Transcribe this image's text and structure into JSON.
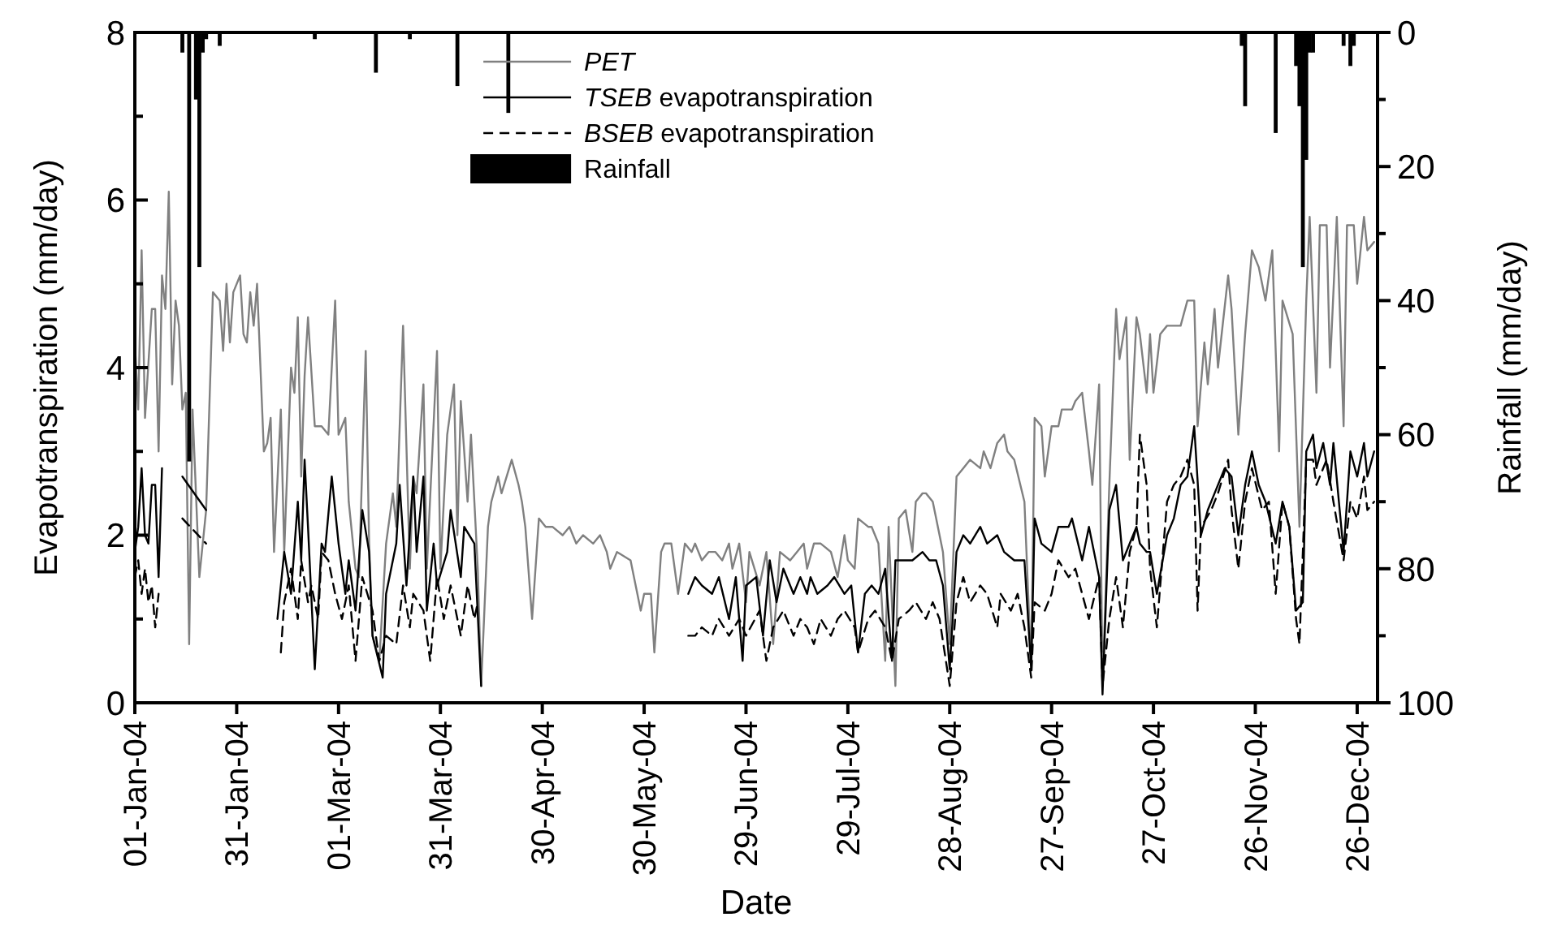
{
  "chart_data": {
    "type": "line",
    "xlabel": "Date",
    "ylabel": "Evapotranspiration (mm/day)",
    "y2label": "Rainfall (mm/day)",
    "xlim": [
      "2004-01-01",
      "2005-01-01"
    ],
    "xticks": [
      {
        "value": "2004-01-01",
        "label": "01-Jan-04"
      },
      {
        "value": "2004-01-31",
        "label": "31-Jan-04"
      },
      {
        "value": "2004-03-01",
        "label": "01-Mar-04"
      },
      {
        "value": "2004-03-31",
        "label": "31-Mar-04"
      },
      {
        "value": "2004-04-30",
        "label": "30-Apr-04"
      },
      {
        "value": "2004-05-30",
        "label": "30-May-04"
      },
      {
        "value": "2004-06-29",
        "label": "29-Jun-04"
      },
      {
        "value": "2004-07-29",
        "label": "29-Jul-04"
      },
      {
        "value": "2004-08-28",
        "label": "28-Aug-04"
      },
      {
        "value": "2004-09-27",
        "label": "27-Sep-04"
      },
      {
        "value": "2004-10-27",
        "label": "27-Oct-04"
      },
      {
        "value": "2004-11-26",
        "label": "26-Nov-04"
      },
      {
        "value": "2004-12-26",
        "label": "26-Dec-04"
      }
    ],
    "ylim": [
      0,
      8
    ],
    "yticks": [
      0,
      {
        "value": 1,
        "label": null
      },
      2,
      {
        "value": 3,
        "label": null
      },
      4,
      {
        "value": 5,
        "label": null
      },
      6,
      {
        "value": 7,
        "label": null
      },
      8
    ],
    "y2lim": [
      100,
      0
    ],
    "y2ticks": [
      100,
      {
        "value": 90,
        "label": null
      },
      80,
      {
        "value": 70,
        "label": null
      },
      60,
      {
        "value": 50,
        "label": null
      },
      40,
      {
        "value": 30,
        "label": null
      },
      20,
      {
        "value": 10,
        "label": null
      },
      0
    ],
    "legend": "top",
    "series": [
      {
        "name": "PET",
        "color": "#808080",
        "line_style": "solid",
        "x": [
          "2004-01-01",
          "2004-01-02",
          "2004-01-03",
          "2004-01-04",
          "2004-01-06",
          "2004-01-07",
          "2004-01-08",
          "2004-01-09",
          "2004-01-10",
          "2004-01-11",
          "2004-01-12",
          "2004-01-13",
          "2004-01-14",
          "2004-01-15",
          "2004-01-16",
          "2004-01-17",
          "2004-01-18",
          "2004-01-20",
          "2004-01-22",
          "2004-01-24",
          "2004-01-26",
          "2004-01-27",
          "2004-01-28",
          "2004-01-29",
          "2004-01-30",
          "2004-02-01",
          "2004-02-02",
          "2004-02-03",
          "2004-02-04",
          "2004-02-05",
          "2004-02-06",
          "2004-02-08",
          "2004-02-09",
          "2004-02-10",
          "2004-02-11",
          "2004-02-13",
          "2004-02-14",
          "2004-02-16",
          "2004-02-17",
          "2004-02-18",
          "2004-02-19",
          "2004-02-20",
          "2004-02-21",
          "2004-02-23",
          "2004-02-25",
          "2004-02-27",
          "2004-02-29",
          "2004-03-01",
          "2004-03-03",
          "2004-03-04",
          "2004-03-06",
          "2004-03-07",
          "2004-03-09",
          "2004-03-10",
          "2004-03-11",
          "2004-03-13",
          "2004-03-15",
          "2004-03-17",
          "2004-03-18",
          "2004-03-20",
          "2004-03-22",
          "2004-03-23",
          "2004-03-24",
          "2004-03-26",
          "2004-03-27",
          "2004-03-30",
          "2004-03-31",
          "2004-04-02",
          "2004-04-04",
          "2004-04-05",
          "2004-04-06",
          "2004-04-08",
          "2004-04-09",
          "2004-04-11",
          "2004-04-12",
          "2004-04-14",
          "2004-04-15",
          "2004-04-17",
          "2004-04-18",
          "2004-04-21",
          "2004-04-23",
          "2004-04-24",
          "2004-04-25",
          "2004-04-27",
          "2004-04-29",
          "2004-05-01",
          "2004-05-03",
          "2004-05-06",
          "2004-05-08",
          "2004-05-10",
          "2004-05-12",
          "2004-05-15",
          "2004-05-17",
          "2004-05-19",
          "2004-05-20",
          "2004-05-22",
          "2004-05-26",
          "2004-05-28",
          "2004-05-29",
          "2004-05-30",
          "2004-06-01",
          "2004-06-02",
          "2004-06-04",
          "2004-06-05",
          "2004-06-07",
          "2004-06-09",
          "2004-06-11",
          "2004-06-13",
          "2004-06-14",
          "2004-06-16",
          "2004-06-18",
          "2004-06-20",
          "2004-06-22",
          "2004-06-24",
          "2004-06-25",
          "2004-06-27",
          "2004-06-29",
          "2004-06-30",
          "2004-07-03",
          "2004-07-05",
          "2004-07-07",
          "2004-07-09",
          "2004-07-12",
          "2004-07-14",
          "2004-07-16",
          "2004-07-17",
          "2004-07-19",
          "2004-07-21",
          "2004-07-24",
          "2004-07-26",
          "2004-07-28",
          "2004-07-29",
          "2004-07-31",
          "2004-08-01",
          "2004-08-04",
          "2004-08-05",
          "2004-08-07",
          "2004-08-09",
          "2004-08-10",
          "2004-08-12",
          "2004-08-13",
          "2004-08-15",
          "2004-08-17",
          "2004-08-18",
          "2004-08-20",
          "2004-08-21",
          "2004-08-23",
          "2004-08-24",
          "2004-08-26",
          "2004-08-28",
          "2004-08-30",
          "2004-09-01",
          "2004-09-03",
          "2004-09-06",
          "2004-09-07",
          "2004-09-09",
          "2004-09-11",
          "2004-09-13",
          "2004-09-14",
          "2004-09-16",
          "2004-09-19",
          "2004-09-21",
          "2004-09-22",
          "2004-09-24",
          "2004-09-25",
          "2004-09-27",
          "2004-09-29",
          "2004-09-30",
          "2004-10-03",
          "2004-10-04",
          "2004-10-06",
          "2004-10-08",
          "2004-10-09",
          "2004-10-11",
          "2004-10-12",
          "2004-10-14",
          "2004-10-16",
          "2004-10-17",
          "2004-10-19",
          "2004-10-20",
          "2004-10-22",
          "2004-10-23",
          "2004-10-25",
          "2004-10-26",
          "2004-10-27",
          "2004-10-29",
          "2004-10-31",
          "2004-11-02",
          "2004-11-04",
          "2004-11-06",
          "2004-11-08",
          "2004-11-09",
          "2004-11-11",
          "2004-11-12",
          "2004-11-14",
          "2004-11-15",
          "2004-11-18",
          "2004-11-19",
          "2004-11-21",
          "2004-11-23",
          "2004-11-25",
          "2004-11-27",
          "2004-11-29",
          "2004-12-01",
          "2004-12-03",
          "2004-12-04",
          "2004-12-07",
          "2004-12-09",
          "2004-12-11",
          "2004-12-12",
          "2004-12-14",
          "2004-12-15",
          "2004-12-17",
          "2004-12-18",
          "2004-12-20",
          "2004-12-22",
          "2004-12-23",
          "2004-12-25",
          "2004-12-26",
          "2004-12-28",
          "2004-12-29",
          "2004-12-31"
        ],
        "values": [
          4.3,
          3.5,
          5.4,
          3.4,
          4.7,
          4.7,
          3.0,
          5.1,
          4.7,
          6.1,
          3.8,
          4.8,
          4.5,
          3.5,
          3.7,
          0.7,
          3.5,
          1.5,
          2.3,
          4.9,
          4.8,
          4.2,
          5.0,
          4.3,
          4.9,
          5.1,
          4.4,
          4.3,
          4.9,
          4.5,
          5.0,
          3.0,
          3.1,
          3.4,
          1.8,
          3.5,
          1.8,
          4.0,
          3.7,
          4.6,
          2.7,
          3.9,
          4.6,
          3.3,
          3.3,
          3.2,
          4.8,
          3.2,
          3.4,
          2.4,
          1.6,
          1.5,
          4.2,
          1.9,
          0.8,
          0.5,
          1.9,
          2.5,
          2.1,
          4.5,
          1.6,
          2.7,
          2.5,
          3.8,
          1.6,
          4.2,
          1.6,
          3.2,
          3.8,
          2.0,
          3.6,
          2.4,
          3.2,
          1.6,
          0.2,
          2.1,
          2.4,
          2.7,
          2.5,
          2.9,
          2.6,
          2.4,
          2.1,
          1.0,
          2.2,
          2.1,
          2.1,
          2.0,
          2.1,
          1.9,
          2.0,
          1.9,
          2.0,
          1.8,
          1.6,
          1.8,
          1.7,
          1.3,
          1.1,
          1.3,
          1.3,
          0.6,
          1.8,
          1.9,
          1.9,
          1.3,
          1.9,
          1.8,
          1.9,
          1.7,
          1.8,
          1.8,
          1.7,
          1.9,
          1.6,
          1.9,
          1.2,
          1.8,
          1.4,
          1.8,
          0.7,
          1.8,
          1.7,
          1.8,
          1.9,
          1.6,
          1.9,
          1.9,
          1.8,
          1.5,
          2.0,
          1.7,
          1.6,
          2.2,
          2.1,
          2.1,
          1.9,
          0.5,
          2.1,
          0.2,
          2.2,
          2.3,
          1.8,
          2.4,
          2.5,
          2.5,
          2.4,
          2.2,
          1.8,
          0.7,
          2.7,
          2.8,
          2.9,
          2.8,
          3.0,
          2.8,
          3.1,
          3.2,
          3.0,
          2.9,
          2.4,
          0.4,
          3.4,
          3.3,
          2.7,
          3.3,
          3.3,
          3.5,
          3.5,
          3.6,
          3.7,
          3.0,
          2.6,
          3.8,
          0.2,
          2.6,
          4.7,
          4.1,
          4.6,
          2.9,
          4.6,
          4.4,
          3.7,
          4.4,
          3.7,
          4.4,
          4.5,
          4.5,
          4.5,
          4.8,
          4.8,
          3.3,
          4.3,
          3.8,
          4.7,
          4.0,
          5.1,
          4.7,
          3.2,
          4.4,
          5.4,
          5.2,
          4.8,
          5.4,
          3.0,
          4.8,
          4.4,
          2.1,
          4.8,
          5.8,
          3.7,
          5.7,
          5.7,
          4.0,
          5.8,
          3.3,
          5.7,
          5.7,
          5.0,
          5.8,
          5.4,
          5.5
        ]
      },
      {
        "name": "TSEB evapotranspiration",
        "color": "#000000",
        "line_style": "solid",
        "x": [
          "2004-01-01",
          "2004-01-02",
          "2004-01-03",
          "2004-01-04",
          "2004-01-05",
          "2004-01-06",
          "2004-01-07",
          "2004-01-08",
          "2004-01-09",
          "2004-01-12",
          "2004-01-15",
          "2004-01-22",
          "2004-02-01",
          "2004-02-12",
          "2004-02-14",
          "2004-02-16",
          "2004-02-18",
          "2004-02-19",
          "2004-02-20",
          "2004-02-21",
          "2004-02-23",
          "2004-02-25",
          "2004-02-26",
          "2004-02-28",
          "2004-03-01",
          "2004-03-03",
          "2004-03-04",
          "2004-03-06",
          "2004-03-08",
          "2004-03-10",
          "2004-03-11",
          "2004-03-14",
          "2004-03-15",
          "2004-03-18",
          "2004-03-19",
          "2004-03-21",
          "2004-03-23",
          "2004-03-24",
          "2004-03-26",
          "2004-03-27",
          "2004-03-29",
          "2004-03-30",
          "2004-04-02",
          "2004-04-03",
          "2004-04-06",
          "2004-04-07",
          "2004-04-10",
          "2004-04-12",
          "2004-05-15",
          "2004-06-12",
          "2004-06-14",
          "2004-06-16",
          "2004-06-19",
          "2004-06-21",
          "2004-06-24",
          "2004-06-26",
          "2004-06-28",
          "2004-06-29",
          "2004-07-02",
          "2004-07-04",
          "2004-07-06",
          "2004-07-08",
          "2004-07-10",
          "2004-07-13",
          "2004-07-15",
          "2004-07-17",
          "2004-07-18",
          "2004-07-20",
          "2004-07-23",
          "2004-07-25",
          "2004-07-28",
          "2004-07-30",
          "2004-08-01",
          "2004-08-03",
          "2004-08-05",
          "2004-08-07",
          "2004-08-09",
          "2004-08-11",
          "2004-08-12",
          "2004-08-15",
          "2004-08-17",
          "2004-08-20",
          "2004-08-22",
          "2004-08-24",
          "2004-08-26",
          "2004-08-28",
          "2004-08-30",
          "2004-09-01",
          "2004-09-03",
          "2004-09-06",
          "2004-09-08",
          "2004-09-11",
          "2004-09-13",
          "2004-09-16",
          "2004-09-19",
          "2004-09-21",
          "2004-09-22",
          "2004-09-24",
          "2004-09-27",
          "2004-09-29",
          "2004-10-02",
          "2004-10-03",
          "2004-10-06",
          "2004-10-08",
          "2004-10-11",
          "2004-10-12",
          "2004-10-14",
          "2004-10-16",
          "2004-10-18",
          "2004-10-20",
          "2004-10-22",
          "2004-10-23",
          "2004-10-25",
          "2004-10-26",
          "2004-10-28",
          "2004-10-31",
          "2004-11-02",
          "2004-11-04",
          "2004-11-06",
          "2004-11-08",
          "2004-11-10",
          "2004-11-12",
          "2004-11-14",
          "2004-11-17",
          "2004-11-19",
          "2004-11-21",
          "2004-11-23",
          "2004-11-25",
          "2004-11-27",
          "2004-11-29",
          "2004-12-02",
          "2004-12-04",
          "2004-12-06",
          "2004-12-08",
          "2004-12-10",
          "2004-12-11",
          "2004-12-13",
          "2004-12-14",
          "2004-12-16",
          "2004-12-18",
          "2004-12-19",
          "2004-12-22",
          "2004-12-24",
          "2004-12-26",
          "2004-12-28",
          "2004-12-29",
          "2004-12-31"
        ],
        "values": [
          1.8,
          2.1,
          2.8,
          2.0,
          1.9,
          2.6,
          2.6,
          1.5,
          2.8,
          null,
          2.7,
          2.3,
          null,
          1.0,
          1.8,
          1.3,
          2.4,
          1.7,
          2.9,
          2.1,
          0.4,
          1.9,
          1.8,
          2.7,
          1.9,
          1.3,
          1.7,
          1.1,
          2.3,
          1.8,
          0.8,
          0.3,
          1.3,
          1.9,
          2.6,
          1.4,
          2.7,
          1.8,
          2.7,
          1.1,
          1.9,
          1.4,
          1.8,
          2.3,
          1.5,
          2.1,
          1.9,
          0.2,
          null,
          1.3,
          1.5,
          1.4,
          1.3,
          1.5,
          1.0,
          1.5,
          0.5,
          1.4,
          1.5,
          0.8,
          1.7,
          1.2,
          1.6,
          1.3,
          1.5,
          1.3,
          1.5,
          1.3,
          1.4,
          1.5,
          1.3,
          1.4,
          0.6,
          1.3,
          1.4,
          1.3,
          1.6,
          0.5,
          1.7,
          1.7,
          1.7,
          1.8,
          1.7,
          1.7,
          1.4,
          0.4,
          1.8,
          2.0,
          1.9,
          2.1,
          1.9,
          2.0,
          1.8,
          1.7,
          1.7,
          0.4,
          2.2,
          1.9,
          1.8,
          2.1,
          2.1,
          2.2,
          1.7,
          2.1,
          1.5,
          0.1,
          2.3,
          2.6,
          1.7,
          1.9,
          2.1,
          1.9,
          1.8,
          1.8,
          1.3,
          2.0,
          2.2,
          2.6,
          2.7,
          3.3,
          2.0,
          2.3,
          2.5,
          2.8,
          2.7,
          2.0,
          2.6,
          3.0,
          2.6,
          2.4,
          1.9,
          2.4,
          2.1,
          1.1,
          1.2,
          3.0,
          3.2,
          2.8,
          3.1,
          2.6,
          3.1,
          1.8,
          3.0,
          2.7,
          3.1,
          2.7,
          3.0
        ]
      },
      {
        "name": "BSEB evapotranspiration",
        "color": "#000000",
        "line_style": "dashed",
        "x": [
          "2004-01-01",
          "2004-01-02",
          "2004-01-03",
          "2004-01-04",
          "2004-01-05",
          "2004-01-06",
          "2004-01-07",
          "2004-01-08",
          "2004-01-12",
          "2004-01-15",
          "2004-01-22",
          "2004-02-01",
          "2004-02-13",
          "2004-02-14",
          "2004-02-16",
          "2004-02-18",
          "2004-02-19",
          "2004-02-21",
          "2004-02-22",
          "2004-02-24",
          "2004-02-25",
          "2004-02-27",
          "2004-02-29",
          "2004-03-02",
          "2004-03-04",
          "2004-03-06",
          "2004-03-08",
          "2004-03-11",
          "2004-03-13",
          "2004-03-15",
          "2004-03-18",
          "2004-03-20",
          "2004-03-22",
          "2004-03-23",
          "2004-03-26",
          "2004-03-28",
          "2004-03-30",
          "2004-04-01",
          "2004-04-03",
          "2004-04-06",
          "2004-04-08",
          "2004-04-10",
          "2004-04-11",
          "2004-05-15",
          "2004-06-12",
          "2004-06-14",
          "2004-06-16",
          "2004-06-19",
          "2004-06-21",
          "2004-06-24",
          "2004-06-27",
          "2004-06-29",
          "2004-07-03",
          "2004-07-05",
          "2004-07-07",
          "2004-07-10",
          "2004-07-13",
          "2004-07-15",
          "2004-07-17",
          "2004-07-19",
          "2004-07-21",
          "2004-07-24",
          "2004-07-26",
          "2004-07-28",
          "2004-07-31",
          "2004-08-01",
          "2004-08-04",
          "2004-08-06",
          "2004-08-09",
          "2004-08-11",
          "2004-08-13",
          "2004-08-16",
          "2004-08-18",
          "2004-08-21",
          "2004-08-23",
          "2004-08-25",
          "2004-08-28",
          "2004-08-30",
          "2004-09-01",
          "2004-09-03",
          "2004-09-06",
          "2004-09-08",
          "2004-09-11",
          "2004-09-12",
          "2004-09-15",
          "2004-09-17",
          "2004-09-19",
          "2004-09-21",
          "2004-09-22",
          "2004-09-25",
          "2004-09-27",
          "2004-09-29",
          "2004-10-02",
          "2004-10-04",
          "2004-10-06",
          "2004-10-08",
          "2004-10-11",
          "2004-10-12",
          "2004-10-14",
          "2004-10-16",
          "2004-10-18",
          "2004-10-20",
          "2004-10-22",
          "2004-10-23",
          "2004-10-25",
          "2004-10-26",
          "2004-10-28",
          "2004-10-30",
          "2004-10-31",
          "2004-11-02",
          "2004-11-04",
          "2004-11-06",
          "2004-11-08",
          "2004-11-09",
          "2004-11-10",
          "2004-11-13",
          "2004-11-15",
          "2004-11-18",
          "2004-11-19",
          "2004-11-21",
          "2004-11-23",
          "2004-11-25",
          "2004-11-28",
          "2004-11-30",
          "2004-12-02",
          "2004-12-04",
          "2004-12-06",
          "2004-12-08",
          "2004-12-09",
          "2004-12-11",
          "2004-12-13",
          "2004-12-14",
          "2004-12-17",
          "2004-12-19",
          "2004-12-22",
          "2004-12-24",
          "2004-12-26",
          "2004-12-28",
          "2004-12-29",
          "2004-12-31"
        ],
        "values": [
          1.5,
          1.7,
          1.3,
          1.6,
          1.2,
          1.4,
          0.9,
          1.3,
          null,
          2.2,
          1.9,
          null,
          0.6,
          1.2,
          1.6,
          1.0,
          1.7,
          1.2,
          1.4,
          1.0,
          1.8,
          1.7,
          1.3,
          1.0,
          1.4,
          0.5,
          1.5,
          1.1,
          0.5,
          0.8,
          0.7,
          1.4,
          0.9,
          1.3,
          1.1,
          0.5,
          1.5,
          1.0,
          1.4,
          0.8,
          1.4,
          1.0,
          1.2,
          null,
          0.8,
          0.8,
          0.9,
          0.8,
          1.0,
          0.8,
          1.0,
          0.8,
          1.1,
          0.5,
          0.9,
          1.1,
          0.8,
          1.0,
          0.9,
          0.7,
          1.0,
          0.8,
          1.0,
          1.1,
          0.9,
          0.6,
          1.0,
          1.1,
          0.9,
          0.5,
          1.0,
          1.1,
          1.2,
          1.0,
          1.2,
          1.0,
          0.2,
          1.2,
          1.5,
          1.2,
          1.4,
          1.3,
          0.9,
          1.3,
          1.1,
          1.3,
          0.9,
          0.3,
          1.2,
          1.1,
          1.3,
          1.7,
          1.5,
          1.6,
          1.3,
          1.0,
          1.5,
          0.2,
          1.0,
          1.5,
          0.9,
          1.8,
          2.1,
          3.2,
          2.6,
          1.6,
          0.9,
          1.9,
          2.4,
          2.6,
          2.7,
          2.9,
          2.6,
          1.1,
          2.1,
          2.3,
          2.5,
          2.9,
          2.3,
          1.6,
          2.4,
          2.8,
          2.3,
          2.4,
          1.3,
          2.4,
          2.1,
          1.0,
          0.7,
          2.9,
          2.9,
          2.6,
          2.9,
          2.4,
          1.7,
          2.4,
          2.2,
          2.7,
          2.3,
          2.4
        ]
      },
      {
        "name": "Rainfall",
        "type": "bar",
        "axis": "y2",
        "color": "#000000",
        "x": [
          "2004-01-15",
          "2004-01-17",
          "2004-01-19",
          "2004-01-20",
          "2004-01-21",
          "2004-01-22",
          "2004-01-26",
          "2004-02-23",
          "2004-03-12",
          "2004-03-22",
          "2004-04-05",
          "2004-04-20",
          "2004-11-22",
          "2004-11-23",
          "2004-12-02",
          "2004-12-08",
          "2004-12-09",
          "2004-12-10",
          "2004-12-11",
          "2004-12-12",
          "2004-12-13",
          "2004-12-22",
          "2004-12-24",
          "2004-12-25"
        ],
        "values": [
          3,
          64,
          10,
          35,
          3,
          1,
          2,
          1,
          6,
          1,
          8,
          12,
          2,
          11,
          15,
          5,
          11,
          35,
          19,
          3,
          3,
          2,
          5,
          2
        ]
      }
    ]
  }
}
